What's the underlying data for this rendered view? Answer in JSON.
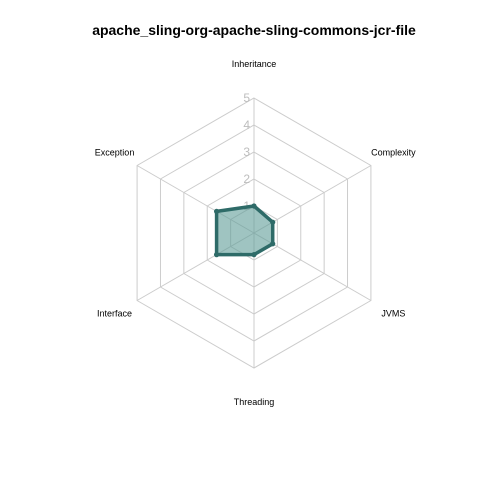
{
  "chart_data": {
    "type": "radar",
    "title": "apache_sling-org-apache-sling-commons-jcr-file",
    "axes": [
      "Inheritance",
      "Complexity",
      "JVMS",
      "Threading",
      "Interface",
      "Exception"
    ],
    "values": [
      1.0,
      0.8,
      0.8,
      0.8,
      1.6,
      1.6
    ],
    "rlim": [
      0,
      5
    ],
    "ticks": [
      "1",
      "2",
      "3",
      "4",
      "5"
    ],
    "grid": true,
    "legend": "none",
    "colors": {
      "line": "#2e6b68",
      "fill": "#5f9c98",
      "grid": "#cccccc",
      "tick": "#bdbdbd"
    }
  }
}
